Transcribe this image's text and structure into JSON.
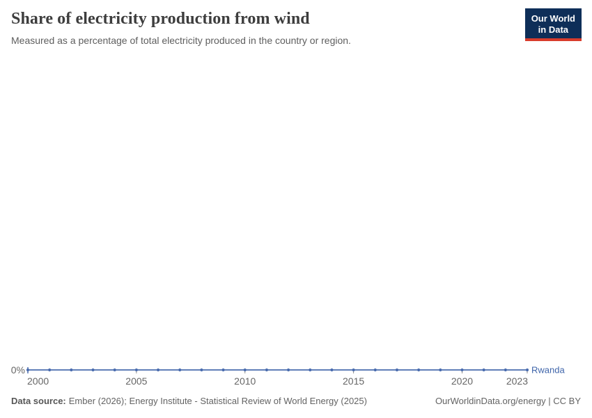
{
  "header": {
    "title": "Share of electricity production from wind",
    "subtitle": "Measured as a percentage of total electricity produced in the country or region.",
    "logo_line1": "Our World",
    "logo_line2": "in Data"
  },
  "chart_data": {
    "type": "line",
    "title": "Share of electricity production from wind",
    "subtitle": "Measured as a percentage of total electricity produced in the country or region.",
    "grid": false,
    "legend_position": "end-of-line-label",
    "x_range": [
      2000,
      2023
    ],
    "ylim": [
      0,
      100
    ],
    "x_ticks": [
      2000,
      2005,
      2010,
      2015,
      2020,
      2023
    ],
    "y_ticks": [
      {
        "value": 0,
        "label": "0%"
      }
    ],
    "series": [
      {
        "name": "Rwanda",
        "color": "#4a6cae",
        "label_color": "#3f65aa",
        "x": [
          2000,
          2001,
          2002,
          2003,
          2004,
          2005,
          2006,
          2007,
          2008,
          2009,
          2010,
          2011,
          2012,
          2013,
          2014,
          2015,
          2016,
          2017,
          2018,
          2019,
          2020,
          2021,
          2022,
          2023
        ],
        "values": [
          0,
          0,
          0,
          0,
          0,
          0,
          0,
          0,
          0,
          0,
          0,
          0,
          0,
          0,
          0,
          0,
          0,
          0,
          0,
          0,
          0,
          0,
          0,
          0
        ]
      }
    ],
    "axis_color": "#8a8a8a",
    "tick_label_color": "#666666"
  },
  "footer": {
    "source_label": "Data source:",
    "source_rest": "Ember (2026); Energy Institute - Statistical Review of World Energy (2025)",
    "rights": "OurWorldinData.org/energy | CC BY"
  }
}
